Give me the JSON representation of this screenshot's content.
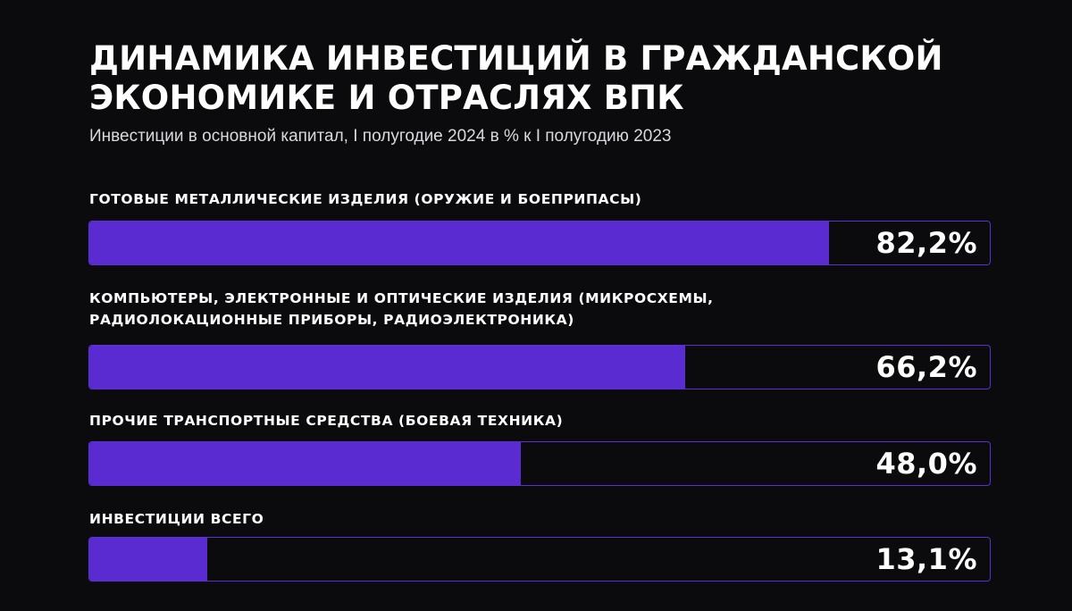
{
  "chart_data": {
    "type": "bar",
    "orientation": "horizontal",
    "title": "ДИНАМИКА ИНВЕСТИЦИЙ В ГРАЖДАНСКОЙ\nЭКОНОМИКЕ И ОТРАСЛЯХ ВПК",
    "subtitle": "Инвестиции в основной капитал, I полугодие 2024 в % к I полугодию 2023",
    "categories": [
      "ГОТОВЫЕ МЕТАЛЛИЧЕСКИЕ ИЗДЕЛИЯ (ОРУЖИЕ И БОЕПРИПАСЫ)",
      "КОМПЬЮТЕРЫ, ЭЛЕКТРОННЫЕ И ОПТИЧЕСКИЕ ИЗДЕЛИЯ (МИКРОСХЕМЫ,\nРАДИОЛОКАЦИОННЫЕ ПРИБОРЫ, РАДИОЭЛЕКТРОНИКА)",
      "ПРОЧИЕ ТРАНСПОРТНЫЕ СРЕДСТВА (БОЕВАЯ ТЕХНИКА)",
      "ИНВЕСТИЦИИ ВСЕГО"
    ],
    "values": [
      82.2,
      66.2,
      48.0,
      13.1
    ],
    "value_labels": [
      "82,2%",
      "66,2%",
      "48,0%",
      "13,1%"
    ],
    "xlim": [
      0,
      100
    ],
    "grid": false,
    "legend": "none",
    "colors": {
      "background": "#0b0b0d",
      "bar_fill": "#5a2bd0",
      "track_border": "#5b2fd1",
      "text": "#ffffff",
      "subtitle_text": "#d9d9de"
    }
  }
}
